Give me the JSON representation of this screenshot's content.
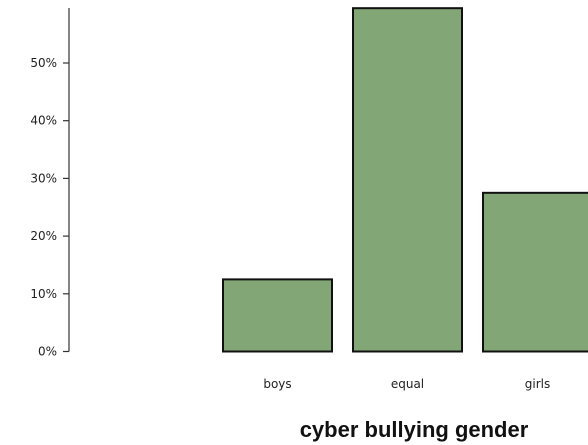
{
  "chart_data": {
    "type": "bar",
    "title": "cyber bullying gender",
    "xlabel": "",
    "ylabel": "",
    "categories": [
      "boys",
      "equal",
      "girls"
    ],
    "values": [
      12.5,
      59.5,
      27.5
    ],
    "ylim": [
      0,
      60
    ],
    "y_ticks": [
      0,
      10,
      20,
      30,
      40,
      50
    ],
    "y_tick_labels": [
      "0%",
      "10%",
      "20%",
      "30%",
      "40%",
      "50%"
    ],
    "bar_color": "#82a675",
    "bar_edge_color": "#111111",
    "axis_color": "#333333",
    "grid": false,
    "legend": "none"
  }
}
